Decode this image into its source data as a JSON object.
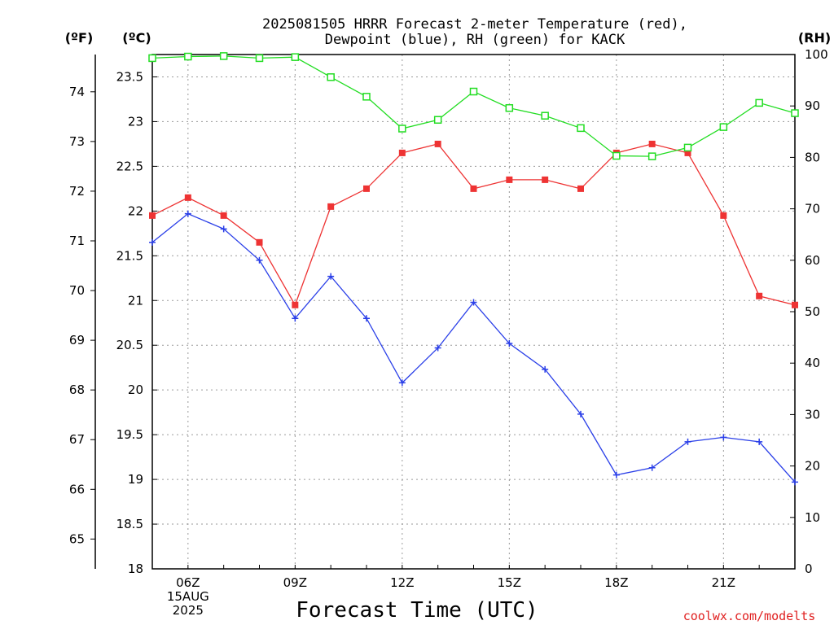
{
  "title": {
    "line1": "2025081505 HRRR Forecast 2-meter Temperature (red),",
    "line2": "Dewpoint (blue), RH (green) for KACK"
  },
  "units": {
    "fahrenheit": "(ºF)",
    "celsius": "(ºC)",
    "rh": "(RH)"
  },
  "credit": "coolwx.com/modelts",
  "colors": {
    "temperature": "#ee3333",
    "dewpoint": "#2a3fe8",
    "rh": "#22dd22"
  },
  "chart_data": {
    "type": "line",
    "xlabel": "Forecast Time (UTC)",
    "x": [
      "05Z",
      "06Z",
      "07Z",
      "08Z",
      "09Z",
      "10Z",
      "11Z",
      "12Z",
      "13Z",
      "14Z",
      "15Z",
      "16Z",
      "17Z",
      "18Z",
      "19Z",
      "20Z",
      "21Z",
      "22Z",
      "23Z"
    ],
    "x_tick_labels": [
      {
        "x": "06Z",
        "lines": [
          "06Z",
          "15AUG",
          "2025"
        ]
      },
      {
        "x": "09Z",
        "lines": [
          "09Z"
        ]
      },
      {
        "x": "12Z",
        "lines": [
          "12Z"
        ]
      },
      {
        "x": "15Z",
        "lines": [
          "15Z"
        ]
      },
      {
        "x": "18Z",
        "lines": [
          "18Z"
        ]
      },
      {
        "x": "21Z",
        "lines": [
          "21Z"
        ]
      }
    ],
    "y_celsius": {
      "range": [
        18,
        23.75
      ],
      "ticks": [
        "18",
        "18.5",
        "19",
        "19.5",
        "20",
        "20.5",
        "21",
        "21.5",
        "22",
        "22.5",
        "23",
        "23.5"
      ]
    },
    "y_fahrenheit": {
      "ticks": [
        "65",
        "66",
        "67",
        "68",
        "69",
        "70",
        "71",
        "72",
        "73",
        "74"
      ]
    },
    "y_rh": {
      "range": [
        0,
        100
      ],
      "ticks": [
        "0",
        "10",
        "20",
        "30",
        "40",
        "50",
        "60",
        "70",
        "80",
        "90",
        "100"
      ]
    },
    "grid": true,
    "series": [
      {
        "key": "temperature",
        "axis": "celsius",
        "marker": "filled-square",
        "values": [
          21.95,
          22.15,
          21.95,
          21.65,
          20.95,
          22.05,
          22.25,
          22.65,
          22.75,
          22.25,
          22.35,
          22.35,
          22.25,
          22.65,
          22.75,
          22.65,
          21.95,
          21.05,
          20.95
        ]
      },
      {
        "key": "dewpoint",
        "axis": "celsius",
        "marker": "plus",
        "values": [
          21.65,
          21.97,
          21.8,
          21.45,
          20.8,
          21.27,
          20.8,
          20.08,
          20.47,
          20.98,
          20.52,
          20.23,
          19.73,
          19.05,
          19.13,
          19.42,
          19.47,
          19.42,
          18.97
        ]
      },
      {
        "key": "rh",
        "axis": "rh",
        "marker": "open-square",
        "values": [
          99.3,
          99.6,
          99.7,
          99.3,
          99.5,
          95.6,
          91.8,
          85.6,
          87.3,
          92.8,
          89.6,
          88.1,
          85.7,
          80.3,
          80.2,
          81.9,
          85.9,
          90.6,
          88.6
        ]
      }
    ]
  }
}
